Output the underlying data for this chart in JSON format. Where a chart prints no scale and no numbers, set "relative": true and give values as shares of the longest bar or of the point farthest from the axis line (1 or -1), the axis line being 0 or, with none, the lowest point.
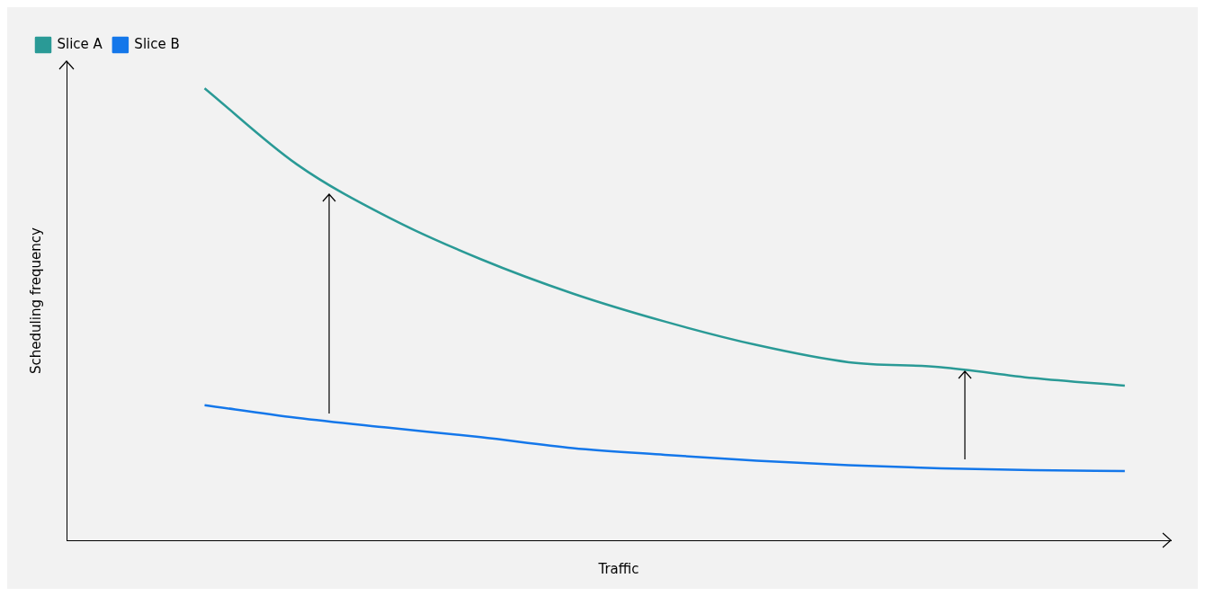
{
  "chart_data": {
    "type": "line",
    "relative": true,
    "xlabel": "Traffic",
    "ylabel": "Scheduling frequency",
    "legend": "top left",
    "grid": false,
    "marker": "none",
    "line_style": "solid",
    "categories": [
      null,
      null,
      null,
      null,
      null,
      null,
      null,
      null,
      null,
      null,
      null,
      null
    ],
    "series": [
      {
        "name": "Slice A",
        "color": "#2a9a96",
        "values": [
          null,
          1.0,
          0.832,
          0.714,
          0.622,
          0.546,
          0.484,
          0.432,
          0.394,
          0.383,
          0.359,
          0.342
        ]
      },
      {
        "name": "Slice B",
        "color": "#1477ea",
        "values": [
          null,
          0.299,
          0.271,
          0.249,
          0.228,
          0.204,
          0.189,
          0.176,
          0.166,
          0.159,
          0.155,
          0.153
        ]
      }
    ]
  }
}
